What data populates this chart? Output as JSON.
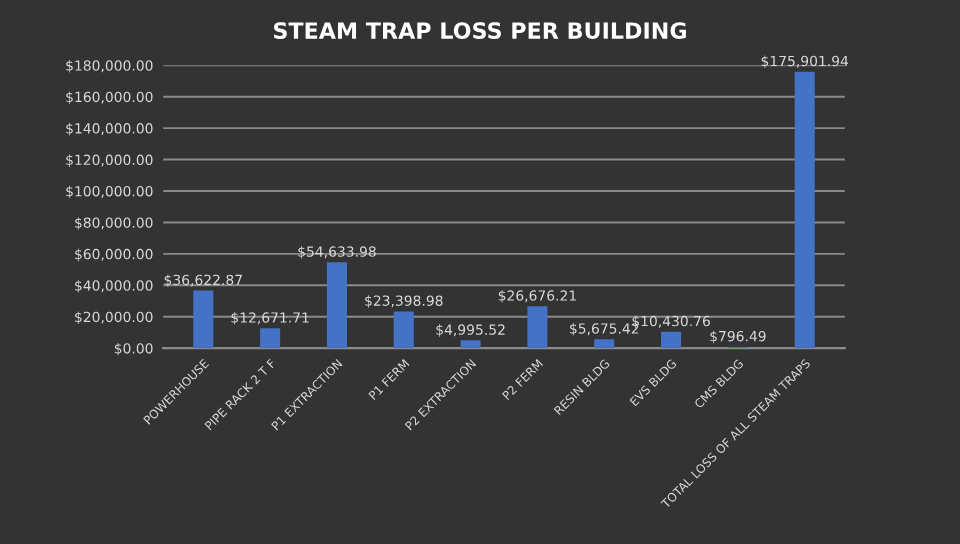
{
  "chart_data": {
    "type": "bar",
    "title": "STEAM TRAP LOSS PER BUILDING",
    "categories": [
      "POWERHOUSE",
      "PIPE RACK 2 T F",
      "P1 EXTRACTION",
      "P1 FERM",
      "P2 EXTRACTION",
      "P2 FERM",
      "RESIN BLDG",
      "EVS BLDG",
      "CMS BLDG",
      "TOTAL LOSS OF ALL STEAM TRAPS"
    ],
    "values": [
      36622.87,
      12671.71,
      54633.98,
      23398.98,
      4995.52,
      26676.21,
      5675.42,
      10430.76,
      796.49,
      175901.94
    ],
    "value_labels": [
      "$36,622.87",
      "$12,671.71",
      "$54,633.98",
      "$23,398.98",
      "$4,995.52",
      "$26,676.21",
      "$5,675.42",
      "$10,430.76",
      "$796.49",
      "$175,901.94"
    ],
    "color": "#4472c4",
    "ylim": [
      0,
      180000
    ],
    "yticks": [
      {
        "value": 0,
        "label": "$0.00"
      },
      {
        "value": 20000,
        "label": "$20,000.00"
      },
      {
        "value": 40000,
        "label": "$40,000.00"
      },
      {
        "value": 60000,
        "label": "$60,000.00"
      },
      {
        "value": 80000,
        "label": "$80,000.00"
      },
      {
        "value": 100000,
        "label": "$100,000.00"
      },
      {
        "value": 120000,
        "label": "$120,000.00"
      },
      {
        "value": 140000,
        "label": "$140,000.00"
      },
      {
        "value": 160000,
        "label": "$160,000.00"
      },
      {
        "value": 180000,
        "label": "$180,000.00"
      }
    ],
    "grid": "y",
    "legend": false
  }
}
